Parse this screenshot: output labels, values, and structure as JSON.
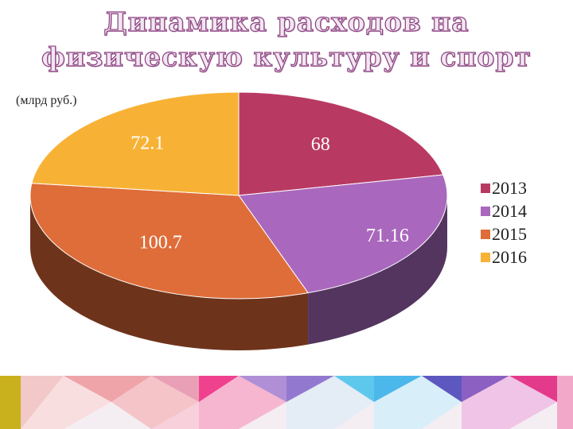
{
  "title": "Динамика расходов на физическую культуру и спорт",
  "unit_note": "(млрд руб.)",
  "chart_data": {
    "type": "pie",
    "title": "Динамика расходов на физическую культуру и спорт",
    "categories": [
      "2013",
      "2014",
      "2015",
      "2016"
    ],
    "values": [
      68,
      71.16,
      100.7,
      72.1
    ],
    "value_labels": [
      "68",
      "71.16",
      "100.7",
      "72.1"
    ],
    "colors": [
      "#b83a63",
      "#a968bd",
      "#df6d39",
      "#f7b236"
    ],
    "side_colors": [
      "#7a2744",
      "#54355f",
      "#6e341b",
      "#6e341b"
    ],
    "legend_position": "right",
    "three_d": true
  }
}
